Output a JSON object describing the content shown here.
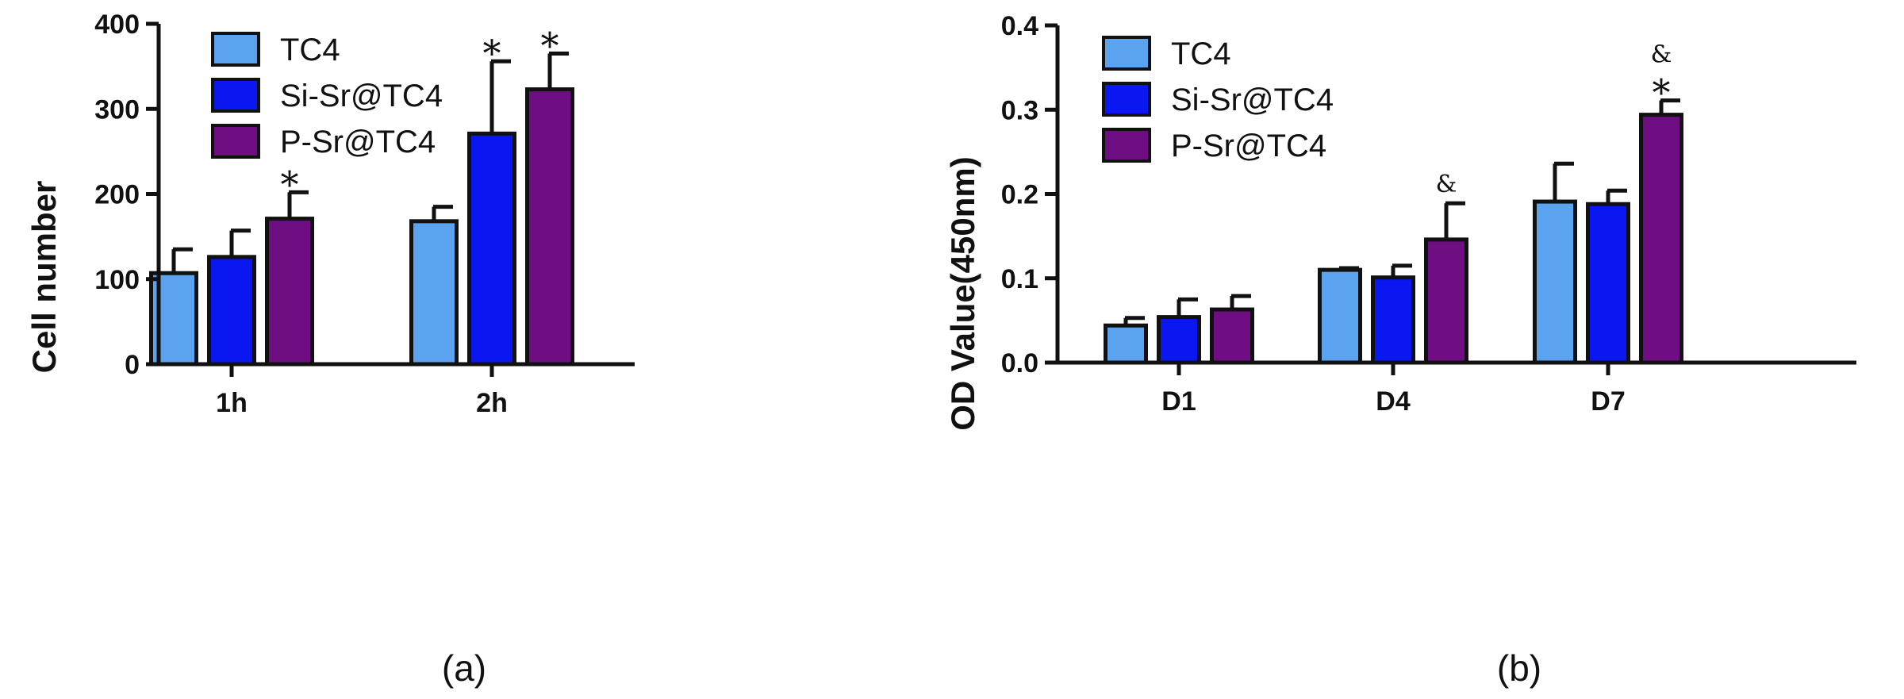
{
  "colors": {
    "TC4": "#5BA3EE",
    "Si-Sr@TC4": "#0A17F0",
    "P-Sr@TC4": "#6E0E82",
    "axis": "#111111"
  },
  "chart_data": [
    {
      "type": "bar",
      "panel_label": "(a)",
      "ylabel": "Cell  number",
      "xlabel": "",
      "ylim": [
        0,
        400
      ],
      "yticks": [
        "0",
        "100",
        "200",
        "300",
        "400"
      ],
      "ytick_values": [
        0,
        100,
        200,
        300,
        400
      ],
      "categories": [
        "1h",
        "2h"
      ],
      "legend": [
        "TC4",
        "Si-Sr@TC4",
        "P-Sr@TC4"
      ],
      "legend_position": "top-left",
      "series": [
        {
          "name": "TC4",
          "values": [
            107,
            168
          ],
          "errors": [
            28,
            17
          ],
          "marks": [
            "",
            ""
          ]
        },
        {
          "name": "Si-Sr@TC4",
          "values": [
            126,
            271
          ],
          "errors": [
            31,
            85
          ],
          "marks": [
            "",
            "*"
          ]
        },
        {
          "name": "P-Sr@TC4",
          "values": [
            171,
            323
          ],
          "errors": [
            31,
            42
          ],
          "marks": [
            "*",
            "*"
          ]
        }
      ]
    },
    {
      "type": "bar",
      "panel_label": "(b)",
      "ylabel": "OD Value(450nm)",
      "xlabel": "",
      "ylim": [
        0,
        0.4
      ],
      "yticks": [
        "0.0",
        "0.1",
        "0.2",
        "0.3",
        "0.4"
      ],
      "ytick_values": [
        0,
        0.1,
        0.2,
        0.3,
        0.4
      ],
      "categories": [
        "D1",
        "D4",
        "D7"
      ],
      "legend": [
        "TC4",
        "Si-Sr@TC4",
        "P-Sr@TC4"
      ],
      "legend_position": "top-left",
      "series": [
        {
          "name": "TC4",
          "values": [
            0.044,
            0.11,
            0.191
          ],
          "errors": [
            0.009,
            0.002,
            0.045
          ],
          "marks": [
            "",
            "",
            ""
          ]
        },
        {
          "name": "Si-Sr@TC4",
          "values": [
            0.054,
            0.101,
            0.188
          ],
          "errors": [
            0.021,
            0.014,
            0.016
          ],
          "marks": [
            "",
            "",
            ""
          ]
        },
        {
          "name": "P-Sr@TC4",
          "values": [
            0.063,
            0.146,
            0.294
          ],
          "errors": [
            0.016,
            0.043,
            0.017
          ],
          "marks": [
            "",
            "&",
            "&*"
          ]
        }
      ]
    }
  ]
}
